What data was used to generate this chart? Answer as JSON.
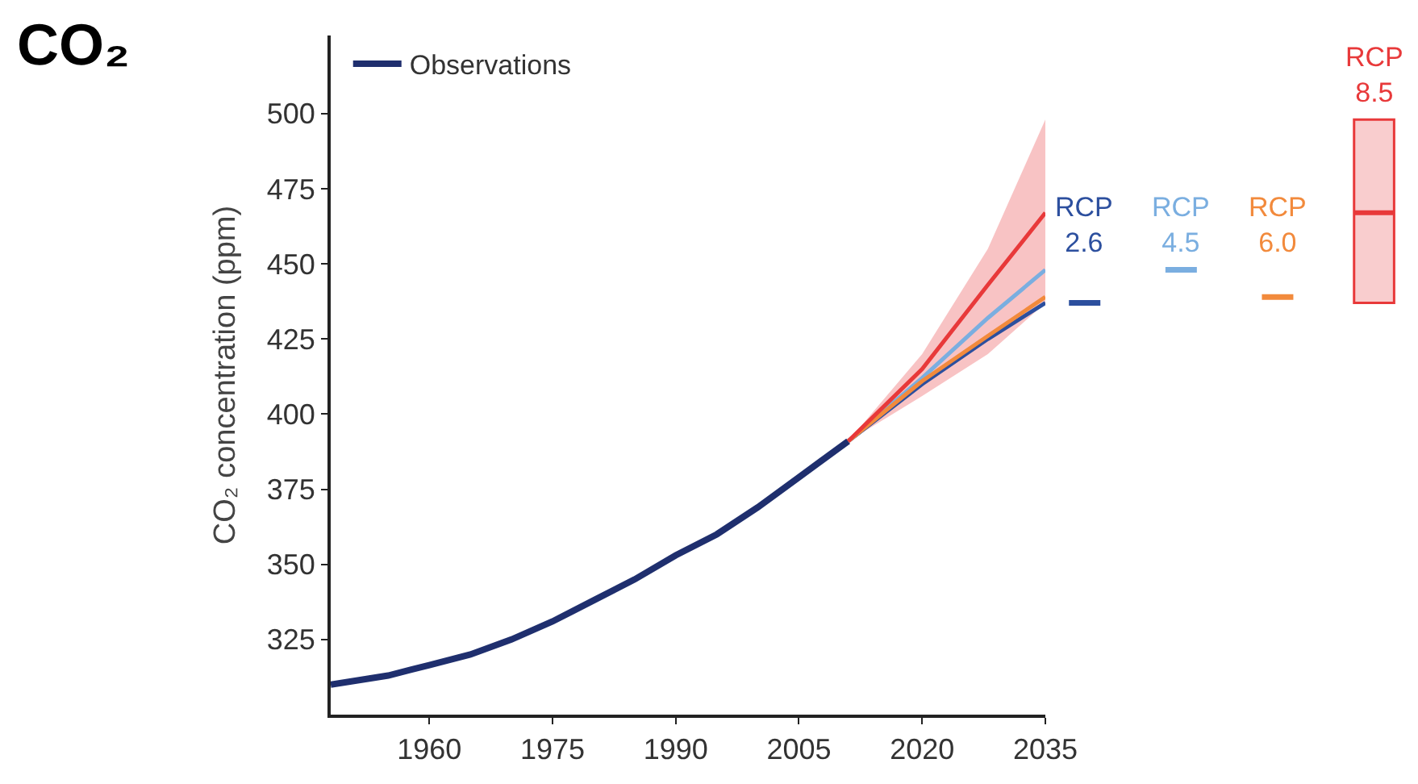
{
  "chart_data": {
    "type": "line",
    "title": "CO₂",
    "ylabel": "CO₂ concentration (ppm)",
    "xlim": [
      1948,
      2035
    ],
    "xticks": [
      1960,
      1975,
      1990,
      2005,
      2020,
      2035
    ],
    "ylim": [
      300,
      526
    ],
    "yticks": [
      325,
      350,
      375,
      400,
      425,
      450,
      475,
      500
    ],
    "grid": false,
    "legend": "top left",
    "line_style": "solid",
    "marker": "none",
    "series": [
      {
        "name": "Observations",
        "color": "#1f2f6e",
        "x": [
          1948,
          1955,
          1960,
          1965,
          1970,
          1975,
          1980,
          1985,
          1990,
          1995,
          2000,
          2005,
          2011
        ],
        "values": [
          310,
          313,
          316.5,
          320,
          325,
          331,
          338,
          345,
          353,
          360,
          369,
          379,
          391
        ]
      },
      {
        "name": "RCP 2.6",
        "color": "#2c4f9e",
        "x": [
          2011,
          2020,
          2028,
          2035
        ],
        "values": [
          391,
          410,
          425,
          437
        ]
      },
      {
        "name": "RCP 4.5",
        "color": "#7aaee0",
        "x": [
          2011,
          2020,
          2028,
          2035
        ],
        "values": [
          391,
          412,
          432,
          448
        ]
      },
      {
        "name": "RCP 6.0",
        "color": "#f28a3c",
        "x": [
          2011,
          2020,
          2028,
          2035
        ],
        "values": [
          391,
          411,
          426,
          439
        ]
      },
      {
        "name": "RCP 8.5",
        "color": "#e8393a",
        "x": [
          2011,
          2020,
          2028,
          2035
        ],
        "values": [
          391,
          415,
          443,
          467
        ],
        "lower": [
          391,
          406,
          420,
          437
        ],
        "upper": [
          391,
          420,
          455,
          498
        ]
      }
    ]
  }
}
